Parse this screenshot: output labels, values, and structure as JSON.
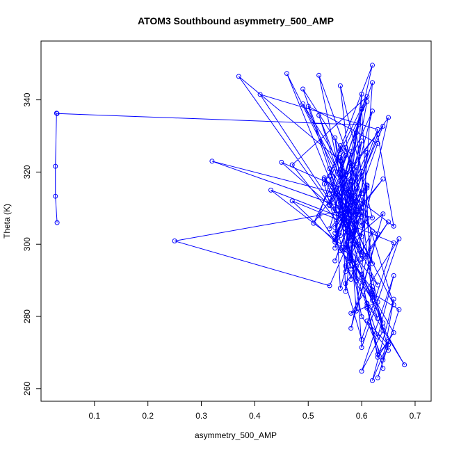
{
  "chart_data": {
    "type": "line",
    "title": "ATOM3 Southbound asymmetry_500_AMP",
    "xlabel": "asymmetry_500_AMP",
    "ylabel": "Theta (K)",
    "xlim": [
      0.0,
      0.73
    ],
    "ylim": [
      256.5,
      356.3
    ],
    "xticks": [
      0.1,
      0.2,
      0.3,
      0.4,
      0.5,
      0.6,
      0.7
    ],
    "xtick_labels": [
      "0.1",
      "0.2",
      "0.3",
      "0.4",
      "0.5",
      "0.6",
      "0.7"
    ],
    "yticks": [
      260,
      280,
      300,
      320,
      340
    ],
    "ytick_labels": [
      "260",
      "280",
      "300",
      "320",
      "340"
    ],
    "grid": false,
    "legend": "none",
    "colors": {
      "series": "#0000ff",
      "axis": "#000000"
    },
    "series": [
      {
        "marker": "open-circle",
        "line": true,
        "x": [
          0.03,
          0.027,
          0.027,
          0.029,
          0.03,
          0.595,
          0.56,
          0.575,
          0.52,
          0.6,
          0.55,
          0.63,
          0.5,
          0.58,
          0.54,
          0.62,
          0.56,
          0.6,
          0.49,
          0.57,
          0.51,
          0.65,
          0.58,
          0.53,
          0.61,
          0.47,
          0.57,
          0.55,
          0.59,
          0.46,
          0.58,
          0.56,
          0.52,
          0.62,
          0.6,
          0.57,
          0.55,
          0.64,
          0.54,
          0.61,
          0.37,
          0.56,
          0.59,
          0.6,
          0.58,
          0.55,
          0.63,
          0.66,
          0.57,
          0.45,
          0.57,
          0.58,
          0.56,
          0.54,
          0.62,
          0.6,
          0.53,
          0.59,
          0.57,
          0.56,
          0.61,
          0.58,
          0.55,
          0.63,
          0.41,
          0.57,
          0.6,
          0.54,
          0.58,
          0.52,
          0.59,
          0.66,
          0.57,
          0.55,
          0.6,
          0.58,
          0.56,
          0.62,
          0.32,
          0.58,
          0.57,
          0.6,
          0.55,
          0.61,
          0.57,
          0.59,
          0.54,
          0.62,
          0.56,
          0.58,
          0.6,
          0.49,
          0.57,
          0.55,
          0.59,
          0.58,
          0.61,
          0.56,
          0.57,
          0.63,
          0.53,
          0.6,
          0.58,
          0.56,
          0.62,
          0.59,
          0.57,
          0.55,
          0.64,
          0.58,
          0.43,
          0.57,
          0.6,
          0.56,
          0.59,
          0.58,
          0.54,
          0.61,
          0.57,
          0.6,
          0.56,
          0.55,
          0.63,
          0.59,
          0.57,
          0.61,
          0.58,
          0.62,
          0.6,
          0.25,
          0.54,
          0.59,
          0.57,
          0.63,
          0.58,
          0.61,
          0.6,
          0.56,
          0.64,
          0.58,
          0.62,
          0.59,
          0.47,
          0.66,
          0.6,
          0.57,
          0.65,
          0.61,
          0.63,
          0.58,
          0.67,
          0.6,
          0.59,
          0.62,
          0.64,
          0.57,
          0.61,
          0.6,
          0.63,
          0.66,
          0.62,
          0.58,
          0.6,
          0.65,
          0.62,
          0.64,
          0.68,
          0.61,
          0.63,
          0.66,
          0.6,
          0.64,
          0.62,
          0.67,
          0.63,
          0.65,
          0.61,
          0.64,
          0.66,
          0.62,
          0.65,
          0.63,
          0.61,
          0.64
        ],
        "y": [
          306,
          313.3,
          321.6,
          336.3,
          336.2,
          333.1,
          320.5,
          308.2,
          346.8,
          314.0,
          295.4,
          327.9,
          338.2,
          302.7,
          318.9,
          349.6,
          310.4,
          297.2,
          343.0,
          324.6,
          305.8,
          335.1,
          290.3,
          316.7,
          340.9,
          322.0,
          303.4,
          329.5,
          299.8,
          347.3,
          311.6,
          326.2,
          307.9,
          284.5,
          337.4,
          319.3,
          301.2,
          332.7,
          313.8,
          296.5,
          346.5,
          323.1,
          309.3,
          341.6,
          317.2,
          298.9,
          330.4,
          305.0,
          314.9,
          322.7,
          306.9,
          293.1,
          327.3,
          311.0,
          344.8,
          302.1,
          318.4,
          308.7,
          286.9,
          324.0,
          339.5,
          315.3,
          300.6,
          331.8,
          341.5,
          305.4,
          295.9,
          320.9,
          312.3,
          335.7,
          303.9,
          283.2,
          326.8,
          309.8,
          297.8,
          317.6,
          343.9,
          307.3,
          323.0,
          313.1,
          299.3,
          328.6,
          304.6,
          316.1,
          292.4,
          321.3,
          310.7,
          336.9,
          302.4,
          314.5,
          307.6,
          338.9,
          319.8,
          303.1,
          311.9,
          296.1,
          325.4,
          308.0,
          300.1,
          288.7,
          317.9,
          305.2,
          322.3,
          312.8,
          294.6,
          330.9,
          309.1,
          301.8,
          318.1,
          306.4,
          315.0,
          299.0,
          320.2,
          311.4,
          289.9,
          325.7,
          304.3,
          316.4,
          298.6,
          308.9,
          287.8,
          313.6,
          302.9,
          281.5,
          319.1,
          307.1,
          296.8,
          285.3,
          310.1,
          300.9,
          288.5,
          305.6,
          294.0,
          279.4,
          302.0,
          315.6,
          291.7,
          298.2,
          308.4,
          276.7,
          303.6,
          295.1,
          312.0,
          300.4,
          273.6,
          289.1,
          306.2,
          297.0,
          284.0,
          280.9,
          301.5,
          271.4,
          293.8,
          287.3,
          278.2,
          299.6,
          282.8,
          290.8,
          268.7,
          275.5,
          285.9,
          296.3,
          279.9,
          270.6,
          288.2,
          277.0,
          266.6,
          283.6,
          274.3,
          291.3,
          264.8,
          276.0,
          286.4,
          281.9,
          263.0,
          272.1,
          278.7,
          267.9,
          284.8,
          262.2,
          273.0,
          269.5,
          282.3,
          265.6
        ]
      }
    ]
  }
}
